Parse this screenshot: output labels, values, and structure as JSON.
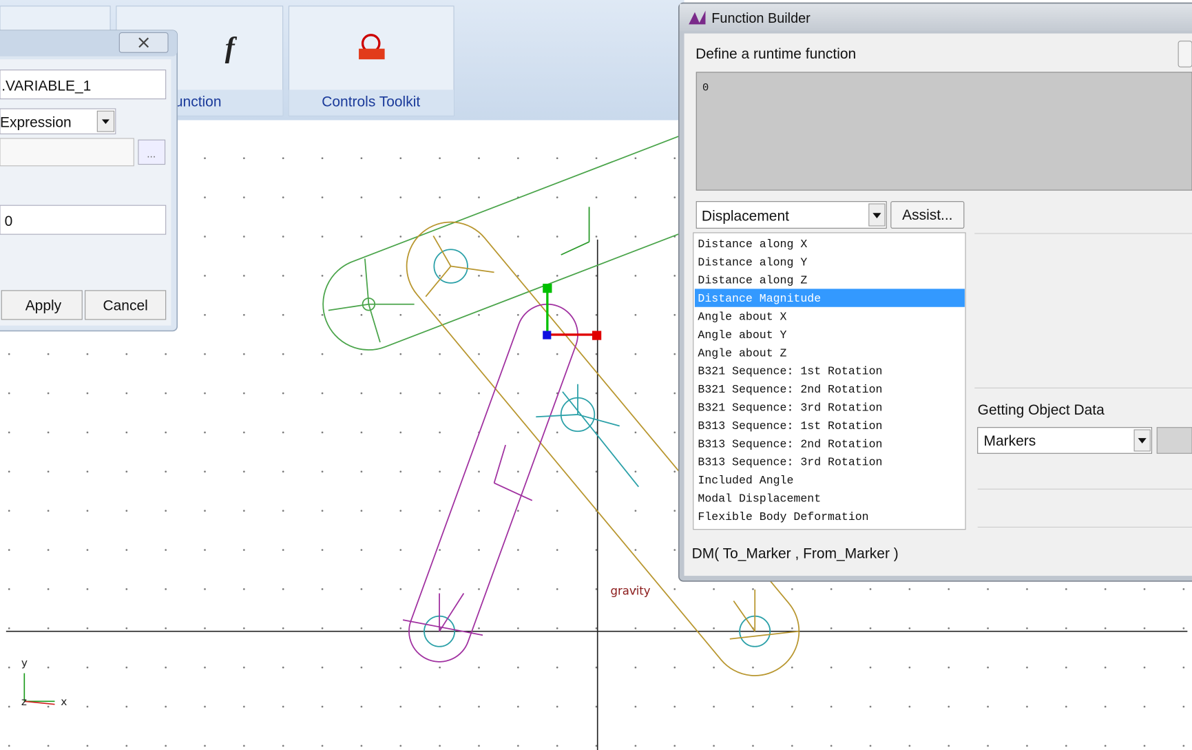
{
  "toolbar": {
    "items": [
      {
        "label": "unction"
      },
      {
        "label": "Controls Toolkit"
      }
    ]
  },
  "variable_dialog": {
    "name": ".VARIABLE_1",
    "type": "Expression",
    "browse": "...",
    "value": "0",
    "apply": "Apply",
    "cancel": "Cancel"
  },
  "function_builder": {
    "title": "Function Builder",
    "prompt": "Define a runtime function",
    "expression": "0",
    "category": "Displacement",
    "assist": "Assist...",
    "functions": [
      "Distance along X",
      "Distance along Y",
      "Distance along Z",
      "Distance Magnitude",
      "Angle about X",
      "Angle about Y",
      "Angle about Z",
      "B321 Sequence: 1st Rotation",
      "B321 Sequence: 2nd Rotation",
      "B321 Sequence: 3rd Rotation",
      "B313 Sequence: 1st Rotation",
      "B313 Sequence: 2nd Rotation",
      "B313 Sequence: 3rd Rotation",
      "Included Angle",
      "Modal Displacement",
      "Flexible Body Deformation"
    ],
    "selected": 3,
    "object_data_label": "Getting Object Data",
    "object_type": "Markers",
    "signature": "DM( To_Marker , From_Marker )"
  },
  "canvas": {
    "gravity": "gravity",
    "triad": {
      "y": "y",
      "x": "x",
      "z": "z"
    }
  }
}
